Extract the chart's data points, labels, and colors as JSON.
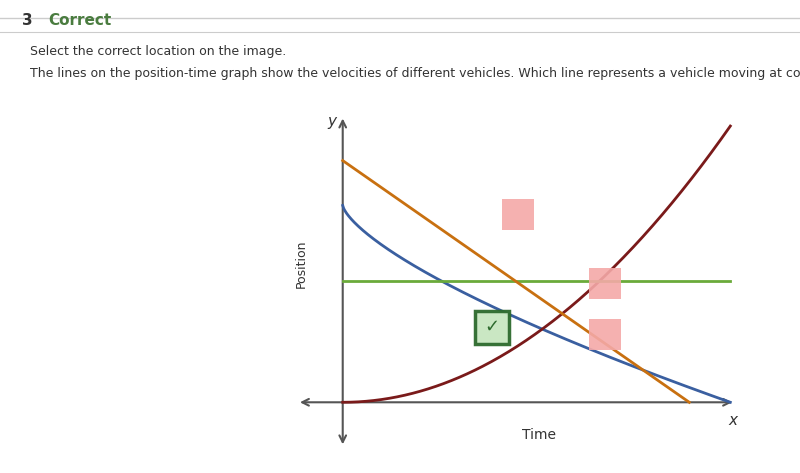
{
  "instruction1": "Select the correct location on the image.",
  "instruction2": "The lines on the position-time graph show the velocities of different vehicles. Which line represents a vehicle moving at constant velocity?",
  "xlabel": "Time",
  "ylabel": "Position",
  "axis_label_x": "x",
  "axis_label_y": "y",
  "background_color": "#ffffff",
  "header_color": "#4a7c3f",
  "text_color": "#333333",
  "line_blue_color": "#3a5fa0",
  "line_red_color": "#7a1a1a",
  "line_green_color": "#6aaa3a",
  "line_orange_color": "#c87010",
  "click_box_correct_fill": "#c8e6c0",
  "click_box_correct_border": "#2d6a2d",
  "click_box_wrong_fill": "#f4a9a8",
  "click_box_wrong_border": "#f4a9a8",
  "header_num": "3",
  "header_label": "Correct",
  "header_line_color": "#cccccc",
  "checkmark_color": "#2d6a2d"
}
